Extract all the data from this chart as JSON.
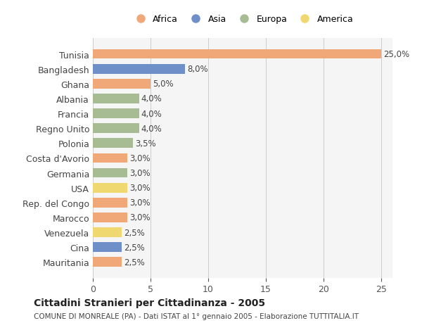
{
  "countries": [
    "Tunisia",
    "Bangladesh",
    "Ghana",
    "Albania",
    "Francia",
    "Regno Unito",
    "Polonia",
    "Costa d'Avorio",
    "Germania",
    "USA",
    "Rep. del Congo",
    "Marocco",
    "Venezuela",
    "Cina",
    "Mauritania"
  ],
  "values": [
    25.0,
    8.0,
    5.0,
    4.0,
    4.0,
    4.0,
    3.5,
    3.0,
    3.0,
    3.0,
    3.0,
    3.0,
    2.5,
    2.5,
    2.5
  ],
  "labels": [
    "25,0%",
    "8,0%",
    "5,0%",
    "4,0%",
    "4,0%",
    "4,0%",
    "3,5%",
    "3,0%",
    "3,0%",
    "3,0%",
    "3,0%",
    "3,0%",
    "2,5%",
    "2,5%",
    "2,5%"
  ],
  "continents": [
    "Africa",
    "Asia",
    "Africa",
    "Europa",
    "Europa",
    "Europa",
    "Europa",
    "Africa",
    "Europa",
    "America",
    "Africa",
    "Africa",
    "America",
    "Asia",
    "Africa"
  ],
  "colors": {
    "Africa": "#F0A878",
    "Asia": "#6E8FC8",
    "Europa": "#A8BC94",
    "America": "#F0D870"
  },
  "legend_order": [
    "Africa",
    "Asia",
    "Europa",
    "America"
  ],
  "title": "Cittadini Stranieri per Cittadinanza - 2005",
  "subtitle": "COMUNE DI MONREALE (PA) - Dati ISTAT al 1° gennaio 2005 - Elaborazione TUTTITALIA.IT",
  "xlim": [
    0,
    26
  ],
  "xticks": [
    0,
    5,
    10,
    15,
    20,
    25
  ],
  "background_color": "#ffffff",
  "plot_background": "#f5f5f5"
}
